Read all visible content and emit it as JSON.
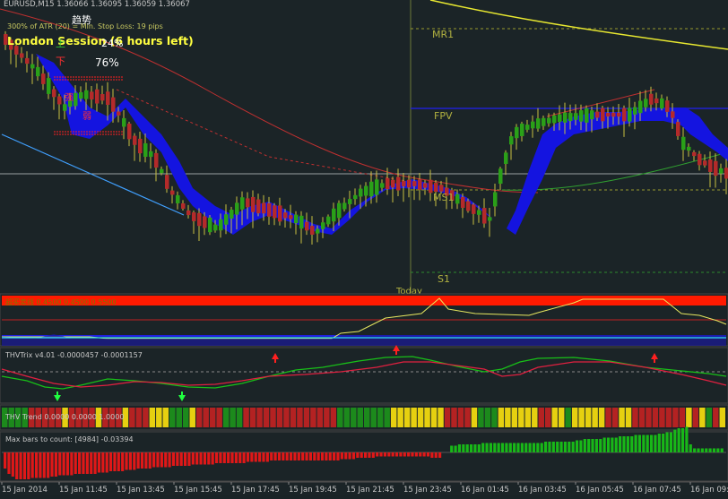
{
  "colors": {
    "background": "#1b2427",
    "bull": "#2aa018",
    "bear": "#b42a2a",
    "cloud": "#1414e0",
    "level": "#b0b040",
    "yellow_curve": "#e8e830",
    "thv_red": "#ff1a00",
    "trix_green": "#18c018",
    "trix_red": "#e02040",
    "arrow_up": "#20ff40",
    "arrow_down": "#ff2020"
  },
  "main": {
    "header": "EURUSD,M15  1.36066 1.36095 1.36059 1.36067",
    "atr_text": "300% of ATR (20) = Min. Stop Loss:   19 pips",
    "session_text": "London Session (6 hours left)",
    "trend_title": "趋势",
    "trend_up": "上",
    "trend_down": "下",
    "pct_up": "24%",
    "pct_down": "76%",
    "strong_label": "强",
    "weak_label": "弱",
    "levels": {
      "mr1": "MR1",
      "fpv": "FPV",
      "ms1": "MS1",
      "s1": "S1"
    },
    "today_label": "Today"
  },
  "panels": {
    "p1_label": "超买卖线 0.4500 0.4500 0.5500",
    "trix_label": "THVTrix v4.01 -0.0000457 -0.0001157",
    "trend_label": "THV Trend 0.0000 0.0000 1.0000",
    "bars_label": "Max bars to count: [4984] -0.03394"
  },
  "time_axis": [
    "15 Jan 2014",
    "15 Jan 11:45",
    "15 Jan 13:45",
    "15 Jan 15:45",
    "15 Jan 17:45",
    "15 Jan 19:45",
    "15 Jan 21:45",
    "15 Jan 23:45",
    "16 Jan 01:45",
    "16 Jan 03:45",
    "16 Jan 05:45",
    "16 Jan 07:45",
    "16 Jan 09:"
  ],
  "trend_blocks": "GGGGRRRRRYRRRRYRRRYRRRYYYGGGYRRRRGGGRRRRRRRRRRRRRRGGGGGGGGYYYYYYYYRRRRYGGGYYYYYYRRYYGYYYYYRRYYRRRRRRRRYRYGRY",
  "histogram_bars": [
    -0.6,
    -0.8,
    -0.9,
    -1,
    -1,
    -1,
    -1,
    -0.95,
    -0.95,
    -0.95,
    -0.95,
    -0.95,
    -0.9,
    -0.9,
    -0.85,
    -0.85,
    -0.85,
    -0.85,
    -0.8,
    -0.8,
    -0.8,
    -0.8,
    -0.8,
    -0.8,
    -0.75,
    -0.75,
    -0.75,
    -0.7,
    -0.7,
    -0.7,
    -0.7,
    -0.65,
    -0.65,
    -0.65,
    -0.6,
    -0.6,
    -0.6,
    -0.6,
    -0.55,
    -0.55,
    -0.55,
    -0.55,
    -0.55,
    -0.5,
    -0.5,
    -0.5,
    -0.5,
    -0.5,
    -0.45,
    -0.45,
    -0.45,
    -0.45,
    -0.45,
    -0.45,
    -0.4,
    -0.4,
    -0.4,
    -0.4,
    -0.4,
    -0.4,
    -0.4,
    -0.4,
    -0.35,
    -0.35,
    -0.35,
    -0.35,
    -0.35,
    -0.35,
    -0.3,
    -0.3,
    -0.3,
    -0.3,
    -0.3,
    -0.3,
    -0.3,
    -0.3,
    -0.3,
    -0.3,
    -0.3,
    -0.3,
    -0.3,
    -0.3,
    -0.3,
    -0.3,
    -0.3,
    -0.3,
    -0.25,
    -0.25,
    -0.25,
    -0.25,
    -0.2,
    -0.2,
    -0.2,
    -0.2,
    -0.2,
    -0.15,
    -0.15,
    -0.15,
    -0.15,
    -0.15,
    -0.15,
    -0.15,
    -0.15,
    -0.15,
    -0.15,
    -0.15,
    -0.15,
    -0.15,
    -0.15,
    -0.2,
    -0.2,
    -0.2,
    0.0,
    0.0,
    0.25,
    0.25,
    0.3,
    0.3,
    0.3,
    0.3,
    0.3,
    0.3,
    0.35,
    0.35,
    0.35,
    0.35,
    0.35,
    0.35,
    0.35,
    0.35,
    0.35,
    0.35,
    0.35,
    0.35,
    0.35,
    0.35,
    0.35,
    0.35,
    0.4,
    0.4,
    0.4,
    0.4,
    0.4,
    0.4,
    0.4,
    0.4,
    0.45,
    0.45,
    0.5,
    0.5,
    0.5,
    0.5,
    0.5,
    0.55,
    0.55,
    0.55,
    0.55,
    0.6,
    0.6,
    0.6,
    0.6,
    0.65,
    0.65,
    0.65,
    0.65,
    0.65,
    0.65,
    0.7,
    0.7,
    0.75,
    0.75,
    0.85,
    0.9,
    0.9,
    0.95,
    0.3,
    0.15,
    0.15,
    0.15,
    0.15,
    0.15,
    0.15,
    0.15,
    0.15
  ]
}
